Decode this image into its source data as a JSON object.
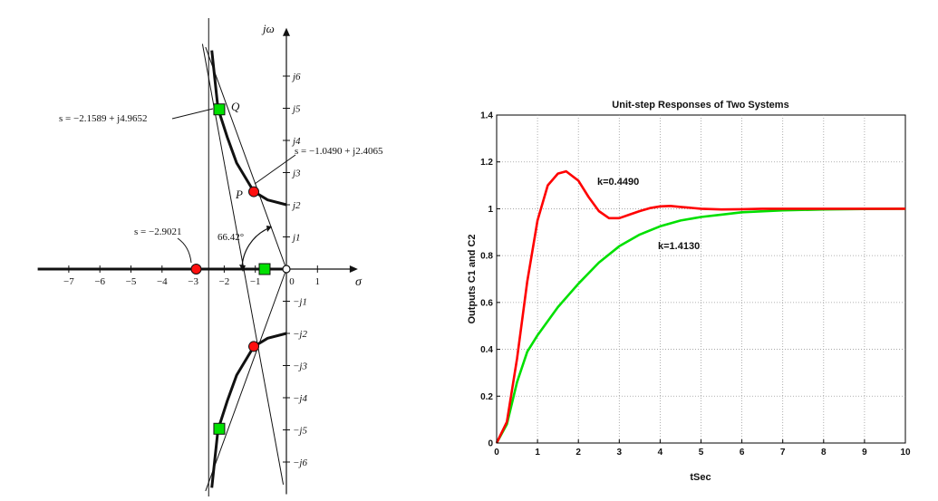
{
  "chart_data": [
    {
      "type": "root-locus",
      "axes": {
        "x_symbol": "σ",
        "y_symbol": "jω",
        "x_ticks": [
          {
            "value": -7,
            "label": "−7"
          },
          {
            "value": -6,
            "label": "−6"
          },
          {
            "value": -5,
            "label": "−5"
          },
          {
            "value": -4,
            "label": "−4"
          },
          {
            "value": -3,
            "label": "−3"
          },
          {
            "value": -2,
            "label": "−2"
          },
          {
            "value": -1,
            "label": "−1"
          },
          {
            "value": 0,
            "label": "0"
          },
          {
            "value": 1,
            "label": "1"
          }
        ],
        "y_ticks": [
          {
            "value": 6,
            "label": "j6"
          },
          {
            "value": 5,
            "label": "j5"
          },
          {
            "value": 4,
            "label": "j4"
          },
          {
            "value": 3,
            "label": "j3"
          },
          {
            "value": 2,
            "label": "j2"
          },
          {
            "value": 1,
            "label": "j1"
          },
          {
            "value": -1,
            "label": "−j1"
          },
          {
            "value": -2,
            "label": "−j2"
          },
          {
            "value": -3,
            "label": "−j3"
          },
          {
            "value": -4,
            "label": "−j4"
          },
          {
            "value": -5,
            "label": "−j5"
          },
          {
            "value": -6,
            "label": "−j6"
          }
        ],
        "xlim": [
          -8,
          2.3
        ],
        "ylim": [
          -7,
          7.5
        ]
      },
      "locus_branches": [
        [
          [
            -2.4,
            6.8
          ],
          [
            -2.2,
            5.0
          ],
          [
            -1.9,
            4.1
          ],
          [
            -1.6,
            3.3
          ],
          [
            -1.05,
            2.41
          ],
          [
            -0.6,
            2.15
          ],
          [
            0,
            2.0
          ]
        ],
        [
          [
            -2.4,
            -6.8
          ],
          [
            -2.2,
            -5.0
          ],
          [
            -1.9,
            -4.1
          ],
          [
            -1.6,
            -3.3
          ],
          [
            -1.05,
            -2.41
          ],
          [
            -0.6,
            -2.15
          ],
          [
            0,
            -2.0
          ]
        ]
      ],
      "real_axis_locus": [
        -8,
        0
      ],
      "guide_lines": [
        {
          "from": [
            -2.7,
            7.0
          ],
          "to": [
            -0.1,
            -6.7
          ]
        },
        {
          "from": [
            0.0,
            0.0
          ],
          "to": [
            -2.6,
            6.9
          ]
        },
        {
          "from": [
            0.0,
            0.0
          ],
          "to": [
            -2.6,
            -6.9
          ]
        }
      ],
      "vertical_line_x": -2.5,
      "red_points": [
        [
          -2.9021,
          0
        ],
        [
          -1.049,
          2.4065
        ],
        [
          -1.049,
          -2.4065
        ]
      ],
      "green_points": [
        [
          -2.1589,
          4.9652
        ],
        [
          -2.1589,
          -4.9652
        ],
        [
          -0.7,
          0
        ]
      ],
      "origin_point": [
        0,
        0
      ],
      "point_labels": [
        {
          "text": "Q",
          "at": [
            -1.9,
            5.0
          ]
        },
        {
          "text": "P",
          "at": [
            -1.5,
            2.5
          ]
        }
      ],
      "annotations": {
        "q_coords": "s = −2.1589 + j4.9652",
        "p_coords": "s = −1.0490 + j2.4065",
        "real_pt": "s = −2.9021",
        "angle": "66.42°"
      }
    },
    {
      "type": "line",
      "title": "Unit-step Responses of Two Systems",
      "xlabel": "tSec",
      "ylabel": "Outputs C1 and C2",
      "xlim": [
        0,
        10
      ],
      "ylim": [
        0,
        1.4
      ],
      "x_ticks": [
        0,
        1,
        2,
        3,
        4,
        5,
        6,
        7,
        8,
        9,
        10
      ],
      "y_ticks": [
        0,
        0.2,
        0.4,
        0.6,
        0.8,
        1,
        1.2,
        1.4
      ],
      "grid": true,
      "series": [
        {
          "name": "k=0.4490",
          "color": "#ff0000",
          "x": [
            0,
            0.25,
            0.5,
            0.75,
            1,
            1.25,
            1.5,
            1.7,
            2,
            2.25,
            2.5,
            2.75,
            3,
            3.25,
            3.5,
            3.75,
            4,
            4.25,
            4.5,
            5,
            5.5,
            6,
            6.5,
            7,
            8,
            10
          ],
          "y": [
            0,
            0.09,
            0.36,
            0.69,
            0.95,
            1.1,
            1.15,
            1.16,
            1.12,
            1.05,
            0.99,
            0.96,
            0.96,
            0.975,
            0.99,
            1.003,
            1.01,
            1.012,
            1.008,
            1.0,
            0.997,
            0.998,
            1.0,
            1.0,
            1.0,
            1.0
          ]
        },
        {
          "name": "k=1.4130",
          "color": "#00e000",
          "x": [
            0,
            0.25,
            0.5,
            0.75,
            1,
            1.5,
            2,
            2.5,
            3,
            3.5,
            4,
            4.5,
            5,
            5.5,
            6,
            7,
            8,
            9,
            10
          ],
          "y": [
            0,
            0.08,
            0.26,
            0.39,
            0.46,
            0.58,
            0.68,
            0.77,
            0.84,
            0.89,
            0.925,
            0.95,
            0.965,
            0.975,
            0.985,
            0.993,
            0.997,
            0.999,
            1.0
          ]
        }
      ],
      "annotations": [
        {
          "text": "k=0.4490",
          "at": [
            2.5,
            1.13
          ]
        },
        {
          "text": "k=1.4130",
          "at": [
            4.0,
            0.85
          ]
        }
      ]
    }
  ]
}
